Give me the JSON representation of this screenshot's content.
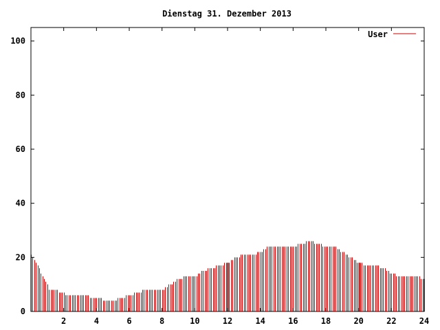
{
  "chart_data": {
    "type": "bar",
    "title": "Dienstag 31. Dezember 2013",
    "xlabel": "",
    "ylabel": "",
    "xlim": [
      0,
      24
    ],
    "ylim": [
      0,
      105
    ],
    "x_ticks": [
      2,
      4,
      6,
      8,
      10,
      12,
      14,
      16,
      18,
      20,
      22,
      24
    ],
    "y_ticks": [
      0,
      20,
      40,
      60,
      80,
      100
    ],
    "grid": false,
    "legend_position": "top-right",
    "series": [
      {
        "name": "User",
        "color": "#cc0000",
        "keypoints_x": [
          0,
          0.1,
          0.3,
          0.5,
          0.7,
          0.9,
          1.1,
          1.5,
          1.9,
          2.3,
          2.7,
          3.3,
          3.7,
          4.1,
          4.5,
          5,
          5.5,
          6,
          6.5,
          7,
          7.5,
          8,
          8.5,
          9,
          9.5,
          10,
          10.5,
          11,
          11.5,
          12,
          12.5,
          13,
          13.5,
          14,
          14.5,
          15,
          15.5,
          16,
          16.5,
          17,
          17.5,
          18,
          18.5,
          19,
          19.5,
          20,
          20.5,
          21,
          21.5,
          22,
          22.5,
          23,
          23.5,
          24
        ],
        "keypoints_y": [
          21,
          20,
          18,
          16,
          13,
          11,
          8,
          8,
          7,
          6,
          6,
          6,
          5,
          5,
          4,
          4,
          5,
          6,
          7,
          8,
          8,
          8,
          10,
          12,
          13,
          13,
          15,
          16,
          17,
          18,
          20,
          21,
          21,
          22,
          24,
          24,
          24,
          24,
          25,
          26,
          25,
          24,
          24,
          22,
          20,
          18,
          17,
          17,
          16,
          14,
          13,
          13,
          13,
          12
        ],
        "spikes_x": [
          12.0,
          20.0
        ],
        "bar_step": 0.1
      }
    ]
  }
}
